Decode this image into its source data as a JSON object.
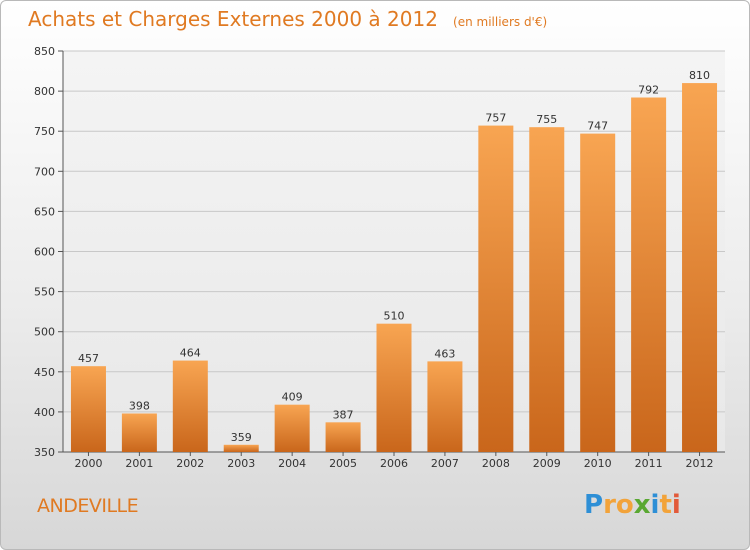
{
  "header": {
    "title": "Achats et Charges Externes 2000 à 2012",
    "unit": "(en milliers d'€)"
  },
  "footer": {
    "commune": "ANDEVILLE",
    "brand_letters": [
      "P",
      "r",
      "o",
      "x",
      "i",
      "t",
      "i"
    ],
    "brand_colors": [
      "#2e8fd6",
      "#f2a33a",
      "#f2a33a",
      "#5aa832",
      "#2e8fd6",
      "#f2a33a",
      "#e25a3a"
    ]
  },
  "chart_data": {
    "type": "bar",
    "title": "Achats et Charges Externes 2000 à 2012",
    "xlabel": "",
    "ylabel": "",
    "categories": [
      "2000",
      "2001",
      "2002",
      "2003",
      "2004",
      "2005",
      "2006",
      "2007",
      "2008",
      "2009",
      "2010",
      "2011",
      "2012"
    ],
    "values": [
      457,
      398,
      464,
      359,
      409,
      387,
      510,
      463,
      757,
      755,
      747,
      792,
      810
    ],
    "ylim": [
      350,
      850
    ],
    "yticks": [
      350,
      400,
      450,
      500,
      550,
      600,
      650,
      700,
      750,
      800,
      850
    ],
    "grid": true,
    "bar_color_top": "#f8a552",
    "bar_color_bottom": "#c9661b"
  }
}
